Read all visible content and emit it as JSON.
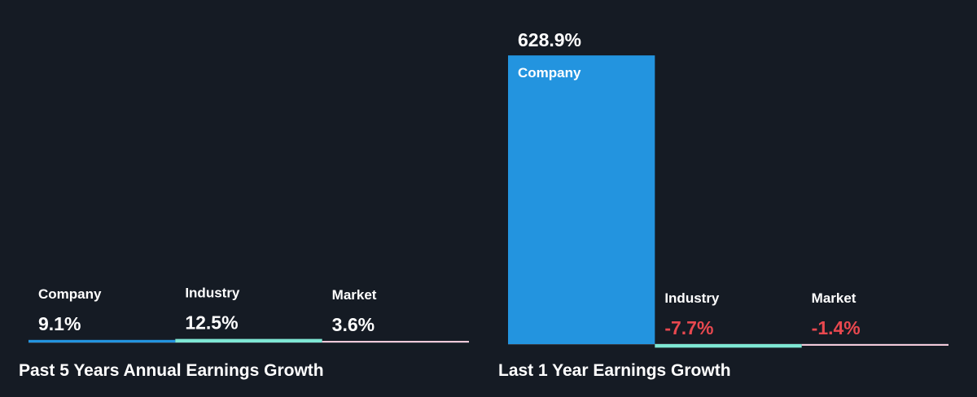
{
  "colors": {
    "background": "#151b24",
    "company": "#2394df",
    "industry": "#7ee7d4",
    "market": "#f2c9d9",
    "negative": "#e8484f",
    "baseline": "#525a66",
    "text": "#ffffff"
  },
  "chart_data": [
    {
      "type": "bar",
      "title": "Past 5 Years Annual Earnings Growth",
      "categories": [
        "Company",
        "Industry",
        "Market"
      ],
      "values": [
        9.1,
        12.5,
        3.6
      ],
      "value_labels": [
        "9.1%",
        "12.5%",
        "3.6%"
      ],
      "unit": "%"
    },
    {
      "type": "bar",
      "title": "Last 1 Year Earnings Growth",
      "categories": [
        "Company",
        "Industry",
        "Market"
      ],
      "values": [
        628.9,
        -7.7,
        -1.4
      ],
      "value_labels": [
        "628.9%",
        "-7.7%",
        "-1.4%"
      ],
      "unit": "%"
    }
  ]
}
